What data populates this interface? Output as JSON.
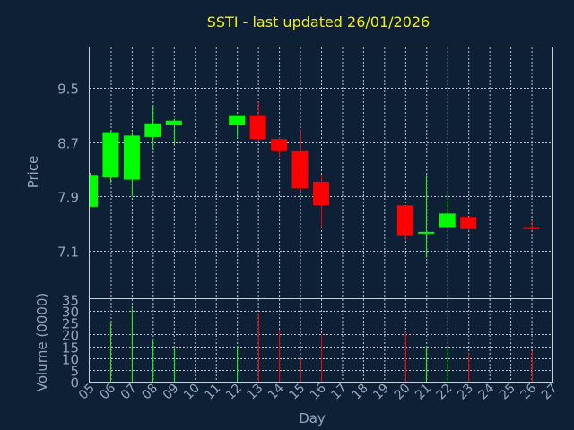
{
  "chart_data": {
    "title": "SSTI - last updated 26/01/2026",
    "price_panel": {
      "type": "candlestick",
      "ylabel": "Price",
      "ylim": [
        6.4,
        10.1
      ],
      "yticks": [
        "7.1",
        "7.9",
        "8.7",
        "9.5"
      ],
      "up_color": "#00ff00",
      "down_color": "#ff0000"
    },
    "volume_panel": {
      "type": "bar",
      "ylabel": "Volume (0000)",
      "ylim": [
        0,
        35
      ],
      "yticks": [
        "0",
        "5",
        "10",
        "15",
        "20",
        "25",
        "30",
        "35"
      ]
    },
    "xlabel": "Day",
    "xticks": [
      "05",
      "06",
      "07",
      "08",
      "09",
      "10",
      "11",
      "12",
      "13",
      "14",
      "15",
      "16",
      "17",
      "18",
      "19",
      "20",
      "21",
      "22",
      "23",
      "24",
      "25",
      "26",
      "27"
    ],
    "candles": [
      {
        "day": 5,
        "open": 7.75,
        "high": 8.25,
        "low": 7.75,
        "close": 8.22,
        "volume": 0
      },
      {
        "day": 6,
        "open": 8.18,
        "high": 8.87,
        "low": 8.1,
        "close": 8.85,
        "volume": 25
      },
      {
        "day": 7,
        "open": 8.15,
        "high": 8.85,
        "low": 7.9,
        "close": 8.8,
        "volume": 31
      },
      {
        "day": 8,
        "open": 8.78,
        "high": 9.23,
        "low": 8.6,
        "close": 8.98,
        "volume": 18
      },
      {
        "day": 9,
        "open": 8.95,
        "high": 9.05,
        "low": 8.67,
        "close": 9.02,
        "volume": 14
      },
      {
        "day": 12,
        "open": 8.95,
        "high": 9.1,
        "low": 8.78,
        "close": 9.1,
        "volume": 15
      },
      {
        "day": 13,
        "open": 9.1,
        "high": 9.3,
        "low": 8.72,
        "close": 8.75,
        "volume": 29
      },
      {
        "day": 14,
        "open": 8.75,
        "high": 8.78,
        "low": 8.48,
        "close": 8.57,
        "volume": 22
      },
      {
        "day": 15,
        "open": 8.57,
        "high": 8.88,
        "low": 7.98,
        "close": 8.02,
        "volume": 10
      },
      {
        "day": 16,
        "open": 8.12,
        "high": 8.22,
        "low": 7.45,
        "close": 7.77,
        "volume": 20
      },
      {
        "day": 20,
        "open": 7.77,
        "high": 7.77,
        "low": 7.25,
        "close": 7.33,
        "volume": 21
      },
      {
        "day": 21,
        "open": 7.38,
        "high": 8.22,
        "low": 7.0,
        "close": 7.38,
        "volume": 15
      },
      {
        "day": 22,
        "open": 7.45,
        "high": 7.87,
        "low": 7.45,
        "close": 7.65,
        "volume": 14
      },
      {
        "day": 23,
        "open": 7.6,
        "high": 7.6,
        "low": 7.4,
        "close": 7.42,
        "volume": 12
      },
      {
        "day": 26,
        "open": 7.45,
        "high": 7.55,
        "low": 7.4,
        "close": 7.42,
        "volume": 13
      }
    ]
  }
}
